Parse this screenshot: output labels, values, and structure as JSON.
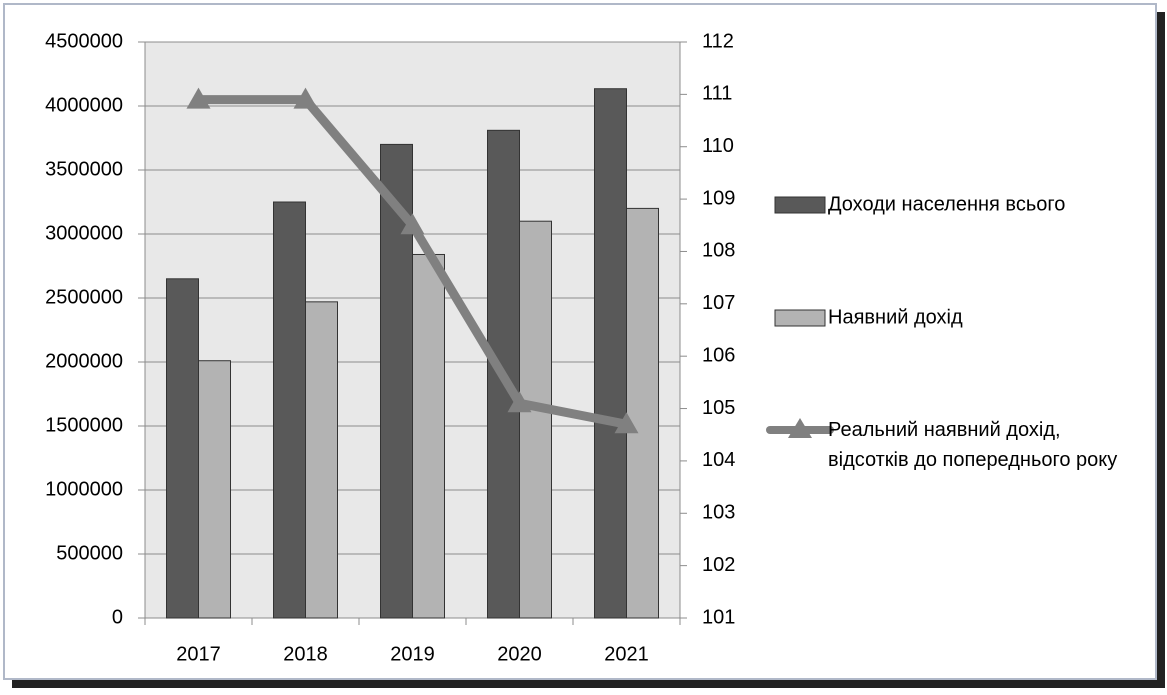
{
  "chart_data": {
    "type": "bar",
    "categories": [
      "2017",
      "2018",
      "2019",
      "2020",
      "2021"
    ],
    "series": [
      {
        "name": "Доходи населення всього",
        "color": "#595959",
        "values": [
          2650000,
          3250000,
          3700000,
          3810000,
          4135000
        ]
      },
      {
        "name": "Наявний дохід",
        "color": "#b3b3b3",
        "values": [
          2010000,
          2470000,
          2840000,
          3100000,
          3200000
        ]
      },
      {
        "name": "Реальний наявний дохід, відсотків до попереднього року",
        "color": "#808080",
        "type": "line",
        "axis": "y2",
        "values": [
          110.9,
          110.9,
          108.5,
          105.1,
          104.7
        ]
      }
    ],
    "ylim": [
      0,
      4500000
    ],
    "yticks": [
      0,
      500000,
      1000000,
      1500000,
      2000000,
      2500000,
      3000000,
      3500000,
      4000000,
      4500000
    ],
    "y2lim": [
      101,
      112
    ],
    "y2ticks": [
      101,
      102,
      103,
      104,
      105,
      106,
      107,
      108,
      109,
      110,
      111,
      112
    ],
    "grid": true,
    "legend": "right"
  }
}
